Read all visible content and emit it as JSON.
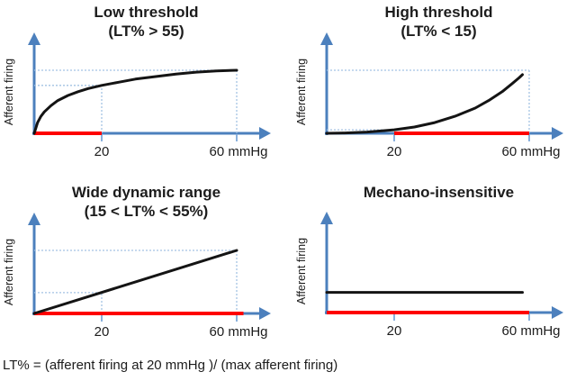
{
  "figure": {
    "caption": "LT% = (afferent firing at 20 mmHg )/ (max afferent firing)",
    "colors": {
      "axis": "#4c80bd",
      "tick": "#8ab1dd",
      "dashed": "#a3c2e3",
      "baseline_red": "#fe0000",
      "curve": "#141414"
    }
  },
  "chart_data": [
    {
      "type": "line",
      "title": "Low threshold",
      "subtitle": "(LT% > 55)",
      "ylabel": "Afferent firing",
      "x_unit": "mmHg",
      "xticks": [
        {
          "value": 20,
          "label": "20"
        },
        {
          "value": 60,
          "label": "60 mmHg"
        }
      ],
      "x_range_mmHg": [
        0,
        65
      ],
      "y_scale": "normalized afferent firing (0 = none, 1 = max)",
      "curve_shape": "saturating",
      "points": [
        [
          0,
          0
        ],
        [
          1,
          0.17
        ],
        [
          2,
          0.27
        ],
        [
          3,
          0.34
        ],
        [
          5,
          0.44
        ],
        [
          7,
          0.52
        ],
        [
          10,
          0.6
        ],
        [
          13,
          0.66
        ],
        [
          16,
          0.71
        ],
        [
          20,
          0.76
        ],
        [
          25,
          0.81
        ],
        [
          30,
          0.86
        ],
        [
          36,
          0.9
        ],
        [
          42,
          0.94
        ],
        [
          48,
          0.97
        ],
        [
          54,
          0.99
        ],
        [
          60,
          1.0
        ]
      ],
      "red_baseline_mmHg": [
        0,
        20
      ],
      "guides": {
        "h": [
          {
            "v": 1.0,
            "from": 0,
            "to": 60
          },
          {
            "v": 0.76,
            "from": 0,
            "to": 20
          }
        ],
        "v": [
          {
            "d": 20,
            "to": 0.76
          },
          {
            "d": 60,
            "to": 1.0
          }
        ]
      }
    },
    {
      "type": "line",
      "title": "High threshold",
      "subtitle": "(LT% < 15)",
      "ylabel": "Afferent firing",
      "x_unit": "mmHg",
      "xticks": [
        {
          "value": 20,
          "label": "20"
        },
        {
          "value": 60,
          "label": "60 mmHg"
        }
      ],
      "x_range_mmHg": [
        0,
        65
      ],
      "y_scale": "normalized afferent firing (0 = none, 1 = max)",
      "curve_shape": "accelerating-exponential",
      "points": [
        [
          0,
          0
        ],
        [
          4,
          0.003
        ],
        [
          8,
          0.01
        ],
        [
          12,
          0.02
        ],
        [
          16,
          0.038
        ],
        [
          20,
          0.055
        ],
        [
          26,
          0.1
        ],
        [
          32,
          0.17
        ],
        [
          38,
          0.27
        ],
        [
          44,
          0.4
        ],
        [
          48,
          0.52
        ],
        [
          52,
          0.66
        ],
        [
          55,
          0.79
        ],
        [
          57,
          0.88
        ],
        [
          58,
          0.93
        ]
      ],
      "red_baseline_mmHg": [
        20,
        60
      ],
      "guides": {
        "h": [
          {
            "v": 1.0,
            "from": 0,
            "to": 60
          },
          {
            "v": 0.055,
            "from": 0,
            "to": 20
          }
        ],
        "v": [
          {
            "d": 60,
            "to": 1.0
          }
        ]
      }
    },
    {
      "type": "line",
      "title": "Wide dynamic range",
      "subtitle": "(15 < LT% < 55%)",
      "ylabel": "Afferent firing",
      "x_unit": "mmHg",
      "xticks": [
        {
          "value": 20,
          "label": "20"
        },
        {
          "value": 60,
          "label": "60 mmHg"
        }
      ],
      "x_range_mmHg": [
        0,
        65
      ],
      "y_scale": "normalized afferent firing (0 = none, 1 = max)",
      "curve_shape": "linear",
      "points": [
        [
          0,
          0
        ],
        [
          60,
          1.0
        ]
      ],
      "red_baseline_mmHg": [
        0,
        62
      ],
      "guides": {
        "h": [
          {
            "v": 1.0,
            "from": 0,
            "to": 60
          },
          {
            "v": 0.33,
            "from": 0,
            "to": 20
          }
        ],
        "v": [
          {
            "d": 20,
            "to": 0.33
          },
          {
            "d": 60,
            "to": 1.0
          }
        ]
      }
    },
    {
      "type": "line",
      "title": "Mechano-insensitive",
      "subtitle": "",
      "ylabel": "Afferent firing",
      "x_unit": "mmHg",
      "xticks": [
        {
          "value": 20,
          "label": "20"
        },
        {
          "value": 60,
          "label": "60 mmHg"
        }
      ],
      "x_range_mmHg": [
        0,
        65
      ],
      "y_scale": "normalized afferent firing (0 = none, 1 = max)",
      "curve_shape": "flat",
      "points": [
        [
          0,
          0.32
        ],
        [
          58,
          0.32
        ]
      ],
      "red_baseline_mmHg": [
        0,
        60
      ],
      "guides": {
        "h": [],
        "v": []
      }
    }
  ]
}
